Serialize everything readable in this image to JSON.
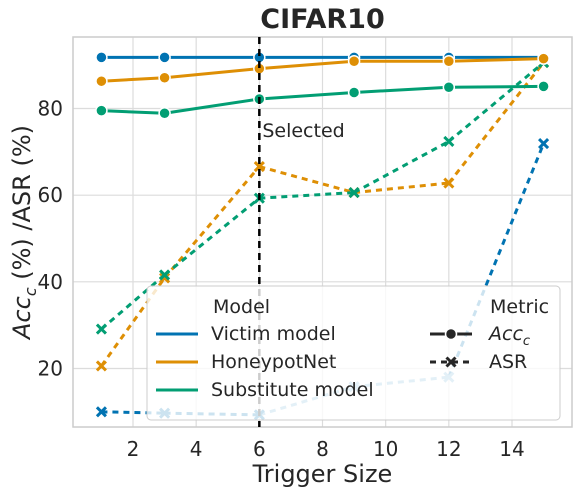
{
  "chart_data": {
    "type": "line",
    "title": "CIFAR10",
    "xlabel": "Trigger Size",
    "ylabel": "Acc_c (%) /ASR (%)",
    "ylabel_parts": {
      "acc": "Acc",
      "sub": "c",
      "rest": " (%) /ASR (%)"
    },
    "xlim": [
      0.1,
      15.9
    ],
    "ylim": [
      6.5,
      96.5
    ],
    "xticks": [
      2,
      4,
      6,
      8,
      10,
      12,
      14
    ],
    "yticks": [
      20,
      40,
      60,
      80
    ],
    "grid": true,
    "x": [
      1,
      3,
      6,
      9,
      12,
      15
    ],
    "series": [
      {
        "name": "Victim model",
        "metric": "Acc_c",
        "color": "#0173b2",
        "style": "solid",
        "marker": "circle",
        "values": [
          91.8,
          91.8,
          91.8,
          91.8,
          91.8,
          91.8
        ]
      },
      {
        "name": "HoneypotNet",
        "metric": "Acc_c",
        "color": "#de8f05",
        "style": "solid",
        "marker": "circle",
        "values": [
          86.3,
          87.1,
          89.2,
          90.9,
          90.9,
          91.5
        ]
      },
      {
        "name": "Substitute model",
        "metric": "Acc_c",
        "color": "#029e73",
        "style": "solid",
        "marker": "circle",
        "values": [
          79.5,
          78.9,
          82.2,
          83.7,
          84.9,
          85.1
        ]
      },
      {
        "name": "Victim model",
        "metric": "ASR",
        "color": "#0173b2",
        "style": "dashed",
        "marker": "x",
        "values": [
          10.0,
          9.7,
          9.3,
          15.8,
          18.0,
          71.9
        ]
      },
      {
        "name": "HoneypotNet",
        "metric": "ASR",
        "color": "#de8f05",
        "style": "dashed",
        "marker": "x",
        "values": [
          20.6,
          40.9,
          66.6,
          60.6,
          62.8,
          90.6
        ]
      },
      {
        "name": "Substitute model",
        "metric": "ASR",
        "color": "#029e73",
        "style": "dashed",
        "marker": "x",
        "values": [
          29.1,
          41.6,
          59.3,
          60.6,
          72.4,
          90.6
        ]
      }
    ],
    "vline": {
      "x": 6,
      "label": "Selected",
      "color": "#000000"
    },
    "legend": {
      "position": "lower-center",
      "model_title": "Model",
      "metric_title": "Metric",
      "models": [
        {
          "label": "Victim model",
          "color": "#0173b2"
        },
        {
          "label": "HoneypotNet",
          "color": "#de8f05"
        },
        {
          "label": "Substitute model",
          "color": "#029e73"
        }
      ],
      "metrics": [
        {
          "label": "Acc_c",
          "main": "Acc",
          "sub": "c",
          "style": "solid",
          "marker": "circle"
        },
        {
          "label": "ASR",
          "main": "ASR",
          "sub": "",
          "style": "dashed",
          "marker": "x"
        }
      ]
    }
  }
}
